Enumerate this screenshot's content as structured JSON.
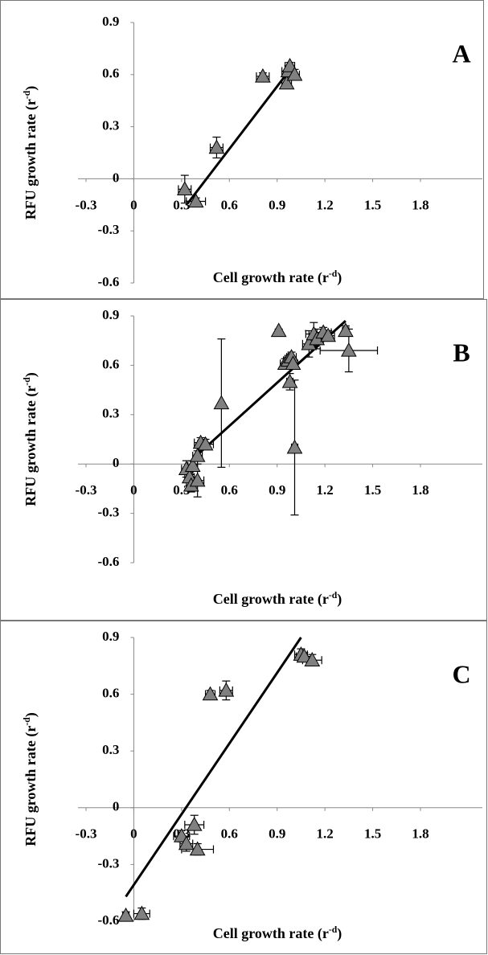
{
  "chart_data": [
    {
      "type": "scatter",
      "panel": "A",
      "x_label": {
        "text": "Cell growth rate (r",
        "sup": "-d",
        "tail": ")"
      },
      "y_label": {
        "text": "RFU growth rate (r",
        "sup": "-d",
        "tail": ")"
      },
      "xlim": [
        -0.3,
        1.8
      ],
      "ylim": [
        -0.6,
        0.9
      ],
      "xticks": [
        -0.3,
        0,
        0.3,
        0.6,
        0.9,
        1.2,
        1.5,
        1.8
      ],
      "yticks": [
        0.9,
        0.6,
        0.3,
        0,
        -0.3,
        -0.6
      ],
      "color": "#808080",
      "x": [
        0.32,
        0.39,
        0.52,
        0.81,
        0.96,
        0.97,
        0.98,
        1.01
      ],
      "values": [
        -0.06,
        -0.13,
        0.18,
        0.59,
        0.55,
        0.62,
        0.65,
        0.6
      ],
      "xerr": [
        0.04,
        0.06,
        0.04,
        0.04,
        0.03,
        0.04,
        0.03,
        0.03
      ],
      "yerr": [
        0.08,
        0.02,
        0.06,
        0.02,
        0.03,
        0.03,
        0.02,
        0.03
      ],
      "trendline": {
        "x": [
          0.34,
          0.99
        ],
        "y": [
          -0.14,
          0.64
        ],
        "color": "#000000"
      }
    },
    {
      "type": "scatter",
      "panel": "B",
      "x_label": {
        "text": "Cell growth rate (r",
        "sup": "-d",
        "tail": ")"
      },
      "y_label": {
        "text": "RFU growth rate (r",
        "sup": "-d",
        "tail": ")"
      },
      "xlim": [
        -0.3,
        1.8
      ],
      "ylim": [
        -0.6,
        0.9
      ],
      "xticks": [
        -0.3,
        0,
        0.3,
        0.6,
        0.9,
        1.2,
        1.5,
        1.8
      ],
      "yticks": [
        0.9,
        0.6,
        0.3,
        0,
        -0.3,
        -0.6
      ],
      "color": "#808080",
      "x": [
        0.33,
        0.35,
        0.36,
        0.37,
        0.4,
        0.4,
        0.42,
        0.45,
        0.55,
        0.91,
        0.95,
        0.97,
        0.98,
        0.99,
        1.0,
        1.01,
        1.1,
        1.13,
        1.15,
        1.19,
        1.22,
        1.33,
        1.35
      ],
      "values": [
        -0.03,
        -0.08,
        -0.13,
        -0.01,
        0.05,
        -0.1,
        0.13,
        0.12,
        0.37,
        0.81,
        0.61,
        0.63,
        0.5,
        0.65,
        0.61,
        0.1,
        0.73,
        0.79,
        0.76,
        0.8,
        0.78,
        0.81,
        0.69
      ],
      "xerr": [
        0.03,
        0.03,
        0.03,
        0.03,
        0.03,
        0.04,
        0.04,
        0.05,
        0.01,
        0.01,
        0.03,
        0.03,
        0.02,
        0.03,
        0.03,
        0.02,
        0.04,
        0.05,
        0.04,
        0.05,
        0.04,
        0.02,
        0.18
      ],
      "yerr": [
        0.05,
        0.03,
        0.04,
        0.03,
        0.03,
        0.1,
        0.03,
        0.03,
        0.39,
        0.01,
        0.03,
        0.03,
        0.05,
        0.03,
        0.03,
        0.41,
        0.08,
        0.07,
        0.06,
        0.03,
        0.03,
        0.03,
        0.13
      ],
      "trendline": {
        "x": [
          0.37,
          1.33
        ],
        "y": [
          0.03,
          0.87
        ],
        "color": "#000000"
      }
    },
    {
      "type": "scatter",
      "panel": "C",
      "x_label": {
        "text": "Cell growth rate (r",
        "sup": "-d",
        "tail": ")"
      },
      "y_label": {
        "text": "RFU growth rate (r",
        "sup": "-d",
        "tail": ")"
      },
      "xlim": [
        -0.3,
        1.8
      ],
      "ylim": [
        -0.6,
        0.9
      ],
      "xticks": [
        -0.3,
        0,
        0.3,
        0.6,
        0.9,
        1.2,
        1.5,
        1.8
      ],
      "yticks": [
        0.9,
        0.6,
        0.3,
        0,
        -0.3,
        -0.6
      ],
      "color": "#808080",
      "x": [
        -0.05,
        0.05,
        0.3,
        0.33,
        0.38,
        0.4,
        0.48,
        0.58,
        1.05,
        1.07,
        1.12
      ],
      "values": [
        -0.57,
        -0.56,
        -0.15,
        -0.19,
        -0.09,
        -0.22,
        0.6,
        0.62,
        0.81,
        0.8,
        0.78
      ],
      "xerr": [
        0.02,
        0.05,
        0.05,
        0.04,
        0.06,
        0.1,
        0.03,
        0.04,
        0.04,
        0.05,
        0.06
      ],
      "yerr": [
        0.02,
        0.03,
        0.03,
        0.04,
        0.05,
        0.03,
        0.02,
        0.05,
        0.03,
        0.02,
        0.03
      ],
      "trendline": {
        "x": [
          -0.05,
          1.05
        ],
        "y": [
          -0.47,
          0.9
        ],
        "color": "#000000"
      }
    }
  ]
}
